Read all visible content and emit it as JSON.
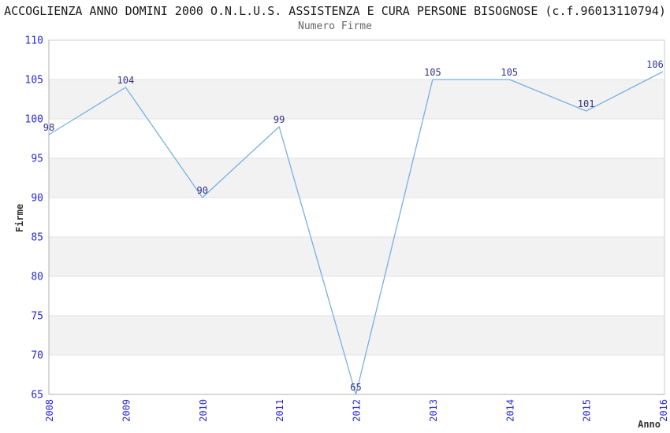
{
  "header": {
    "title": "ACCOGLIENZA ANNO DOMINI 2000 O.N.L.U.S. ASSISTENZA E CURA PERSONE BISOGNOSE (c.f.96013110794)",
    "subtitle": "Numero Firme"
  },
  "chart_data": {
    "type": "line",
    "title": "Numero Firme",
    "categories": [
      "2008",
      "2009",
      "2010",
      "2011",
      "2012",
      "2013",
      "2014",
      "2015",
      "2016"
    ],
    "values": [
      98,
      104,
      90,
      99,
      65,
      105,
      105,
      101,
      106
    ],
    "ylabel": "Firme",
    "xlabel": "Anno",
    "ylim": [
      65,
      110
    ],
    "ytick_step": 5,
    "grid": "horizontal gridlines with alternating gray bands",
    "legend": "none",
    "colors": {
      "line": "#79afe3",
      "tick_label": "#2929d6",
      "data_label": "#32328c",
      "band": "#f2f2f2",
      "gridline": "#e3e3e3",
      "axis": "#b0b0b0",
      "border": "#cccccc",
      "subtitle": "#666666",
      "axis_title": "#333333"
    }
  }
}
